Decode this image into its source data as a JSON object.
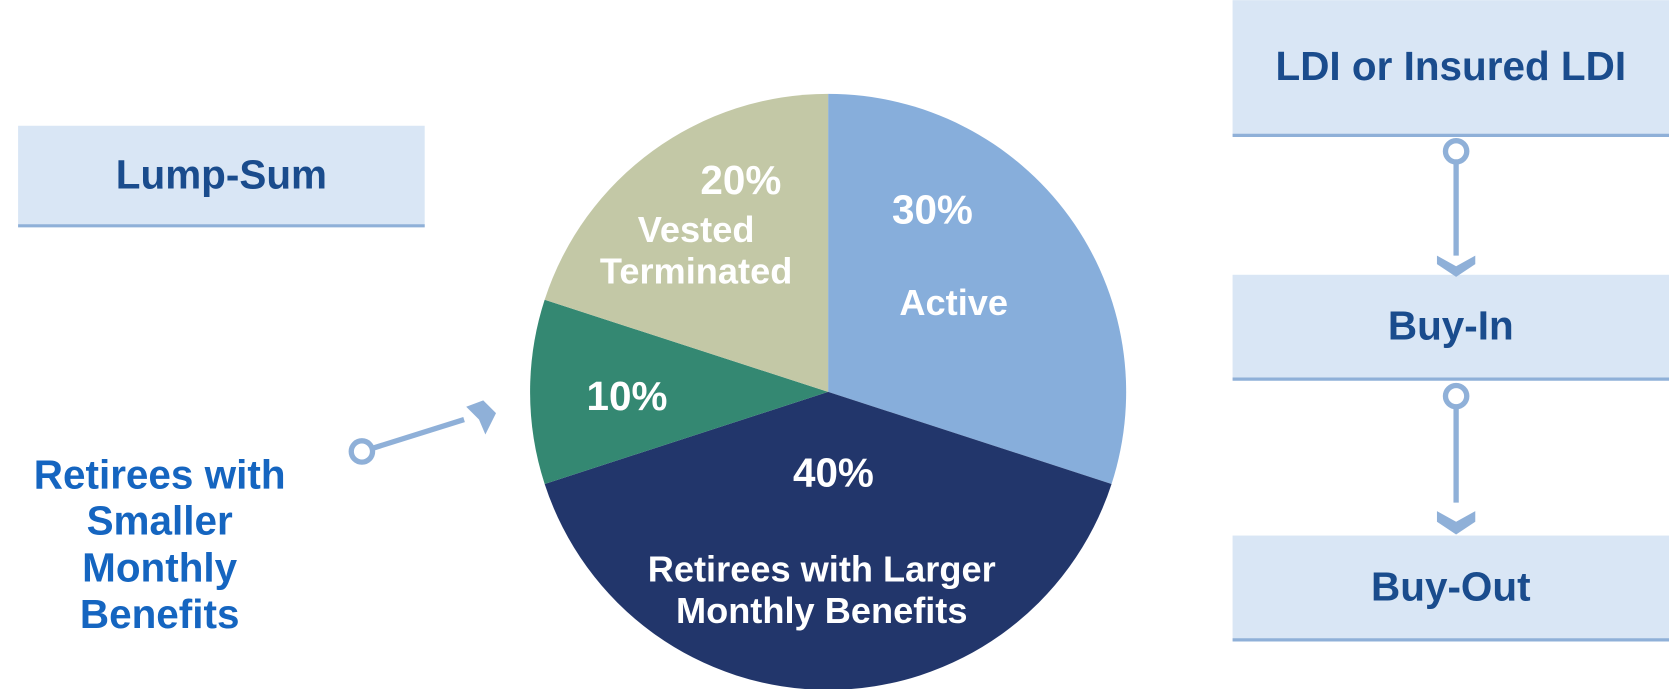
{
  "chart_data": {
    "type": "pie",
    "categories": [
      "Active",
      "Retirees with Larger Monthly Benefits",
      "Retirees with Smaller Monthly Benefits",
      "Vested Terminated"
    ],
    "values": [
      30,
      40,
      10,
      20
    ],
    "value_labels": [
      "30%",
      "40%",
      "10%",
      "20%"
    ],
    "colors": [
      "#87aedb",
      "#22366b",
      "#348872",
      "#c3c8a6"
    ]
  },
  "left_panel": {
    "title": "Lump-Sum"
  },
  "flow": {
    "steps": [
      "LDI or Insured LDI",
      "Buy-In",
      "Buy-Out"
    ]
  }
}
